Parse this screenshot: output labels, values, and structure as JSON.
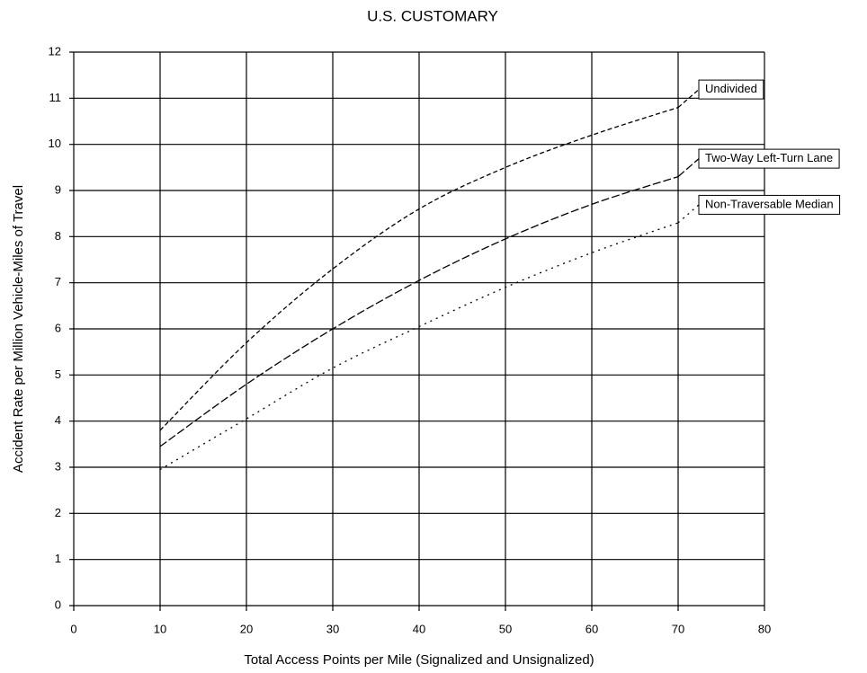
{
  "chart_data": {
    "type": "line",
    "title": "U.S. CUSTOMARY",
    "x_label": "Total Access Points per Mile (Signalized and Unsignalized)",
    "y_label": "Accident Rate per Million Vehicle-Miles of Travel",
    "x": [
      10,
      20,
      30,
      40,
      50,
      60,
      70
    ],
    "series": [
      {
        "name": "Undivided",
        "color": "#000000",
        "dash": "dashed",
        "values": [
          3.8,
          5.7,
          7.3,
          8.6,
          9.5,
          10.2,
          10.8
        ]
      },
      {
        "name": "Two-Way Left-Turn Lane",
        "color": "#000000",
        "dash": "long-dashed",
        "values": [
          3.45,
          4.8,
          6.0,
          7.05,
          7.95,
          8.7,
          9.3
        ]
      },
      {
        "name": "Non-Traversable  Median",
        "color": "#000000",
        "dash": "dotted",
        "values": [
          2.95,
          4.05,
          5.15,
          6.05,
          6.9,
          7.65,
          8.3
        ]
      }
    ],
    "xlim": [
      0,
      80
    ],
    "xticks": [
      0,
      10,
      20,
      30,
      40,
      50,
      60,
      70,
      80
    ],
    "ylim": [
      0,
      12
    ],
    "yticks": [
      0,
      1,
      2,
      3,
      4,
      5,
      6,
      7,
      8,
      9,
      10,
      11,
      12
    ],
    "grid": true
  }
}
